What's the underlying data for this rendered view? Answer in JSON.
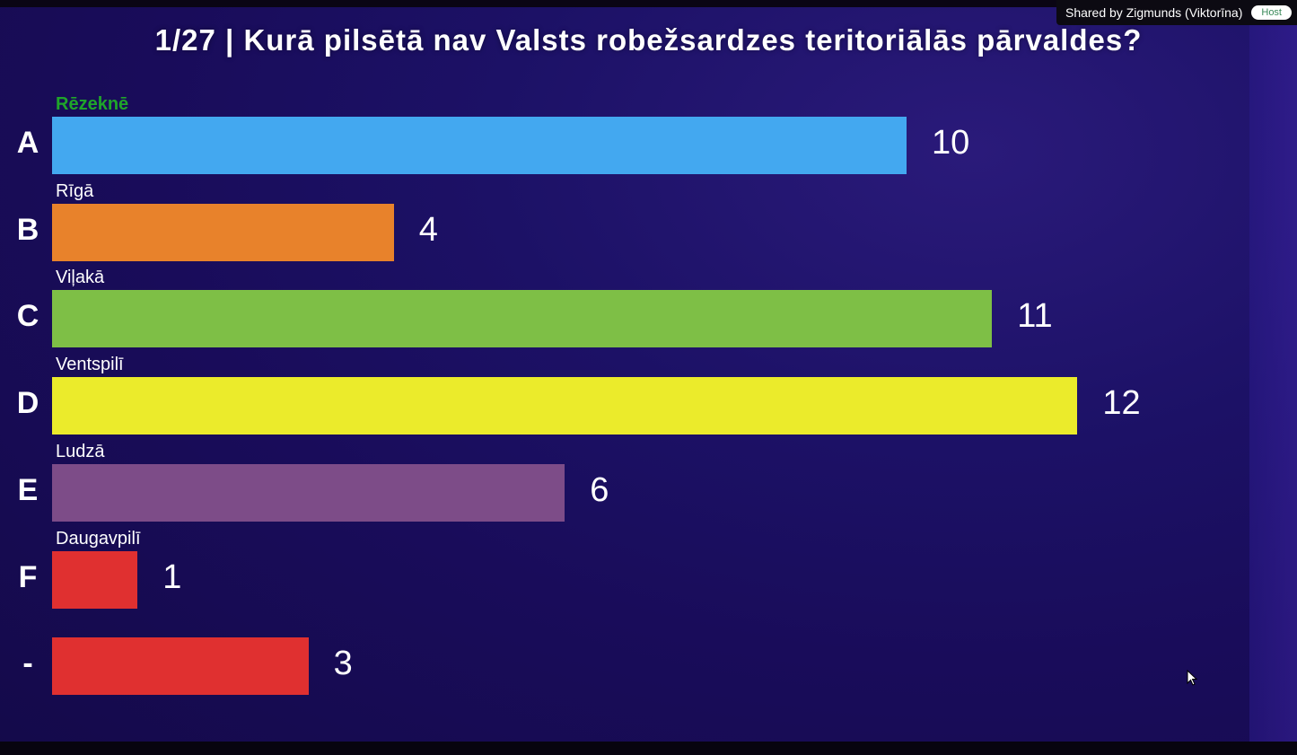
{
  "title": "1/27 |  Kurā pilsētā nav Valsts robežsardzes teritoriālās pārvaldes?",
  "share": {
    "text": "Shared by Zigmunds (Viktorīna)",
    "badge": "Host"
  },
  "chart_data": {
    "type": "bar",
    "orientation": "horizontal",
    "title": "1/27 |  Kurā pilsētā nav Valsts robežsardzes teritoriālās pārvaldes?",
    "xlim": [
      0,
      12
    ],
    "categories": [
      "A",
      "B",
      "C",
      "D",
      "E",
      "F",
      "-"
    ],
    "answers": [
      "Rēzeknē",
      "Rīgā",
      "Viļakā",
      "Ventspilī",
      "Ludzā",
      "Daugavpilī",
      ""
    ],
    "values": [
      10,
      4,
      11,
      12,
      6,
      1,
      3
    ],
    "colors": [
      "#43a8f0",
      "#e8822b",
      "#7ebf46",
      "#ebeb2b",
      "#7d4c88",
      "#e03030",
      "#e03030"
    ],
    "correct_answer": "Rēzeknē",
    "correct_color": "#1fa52a"
  }
}
